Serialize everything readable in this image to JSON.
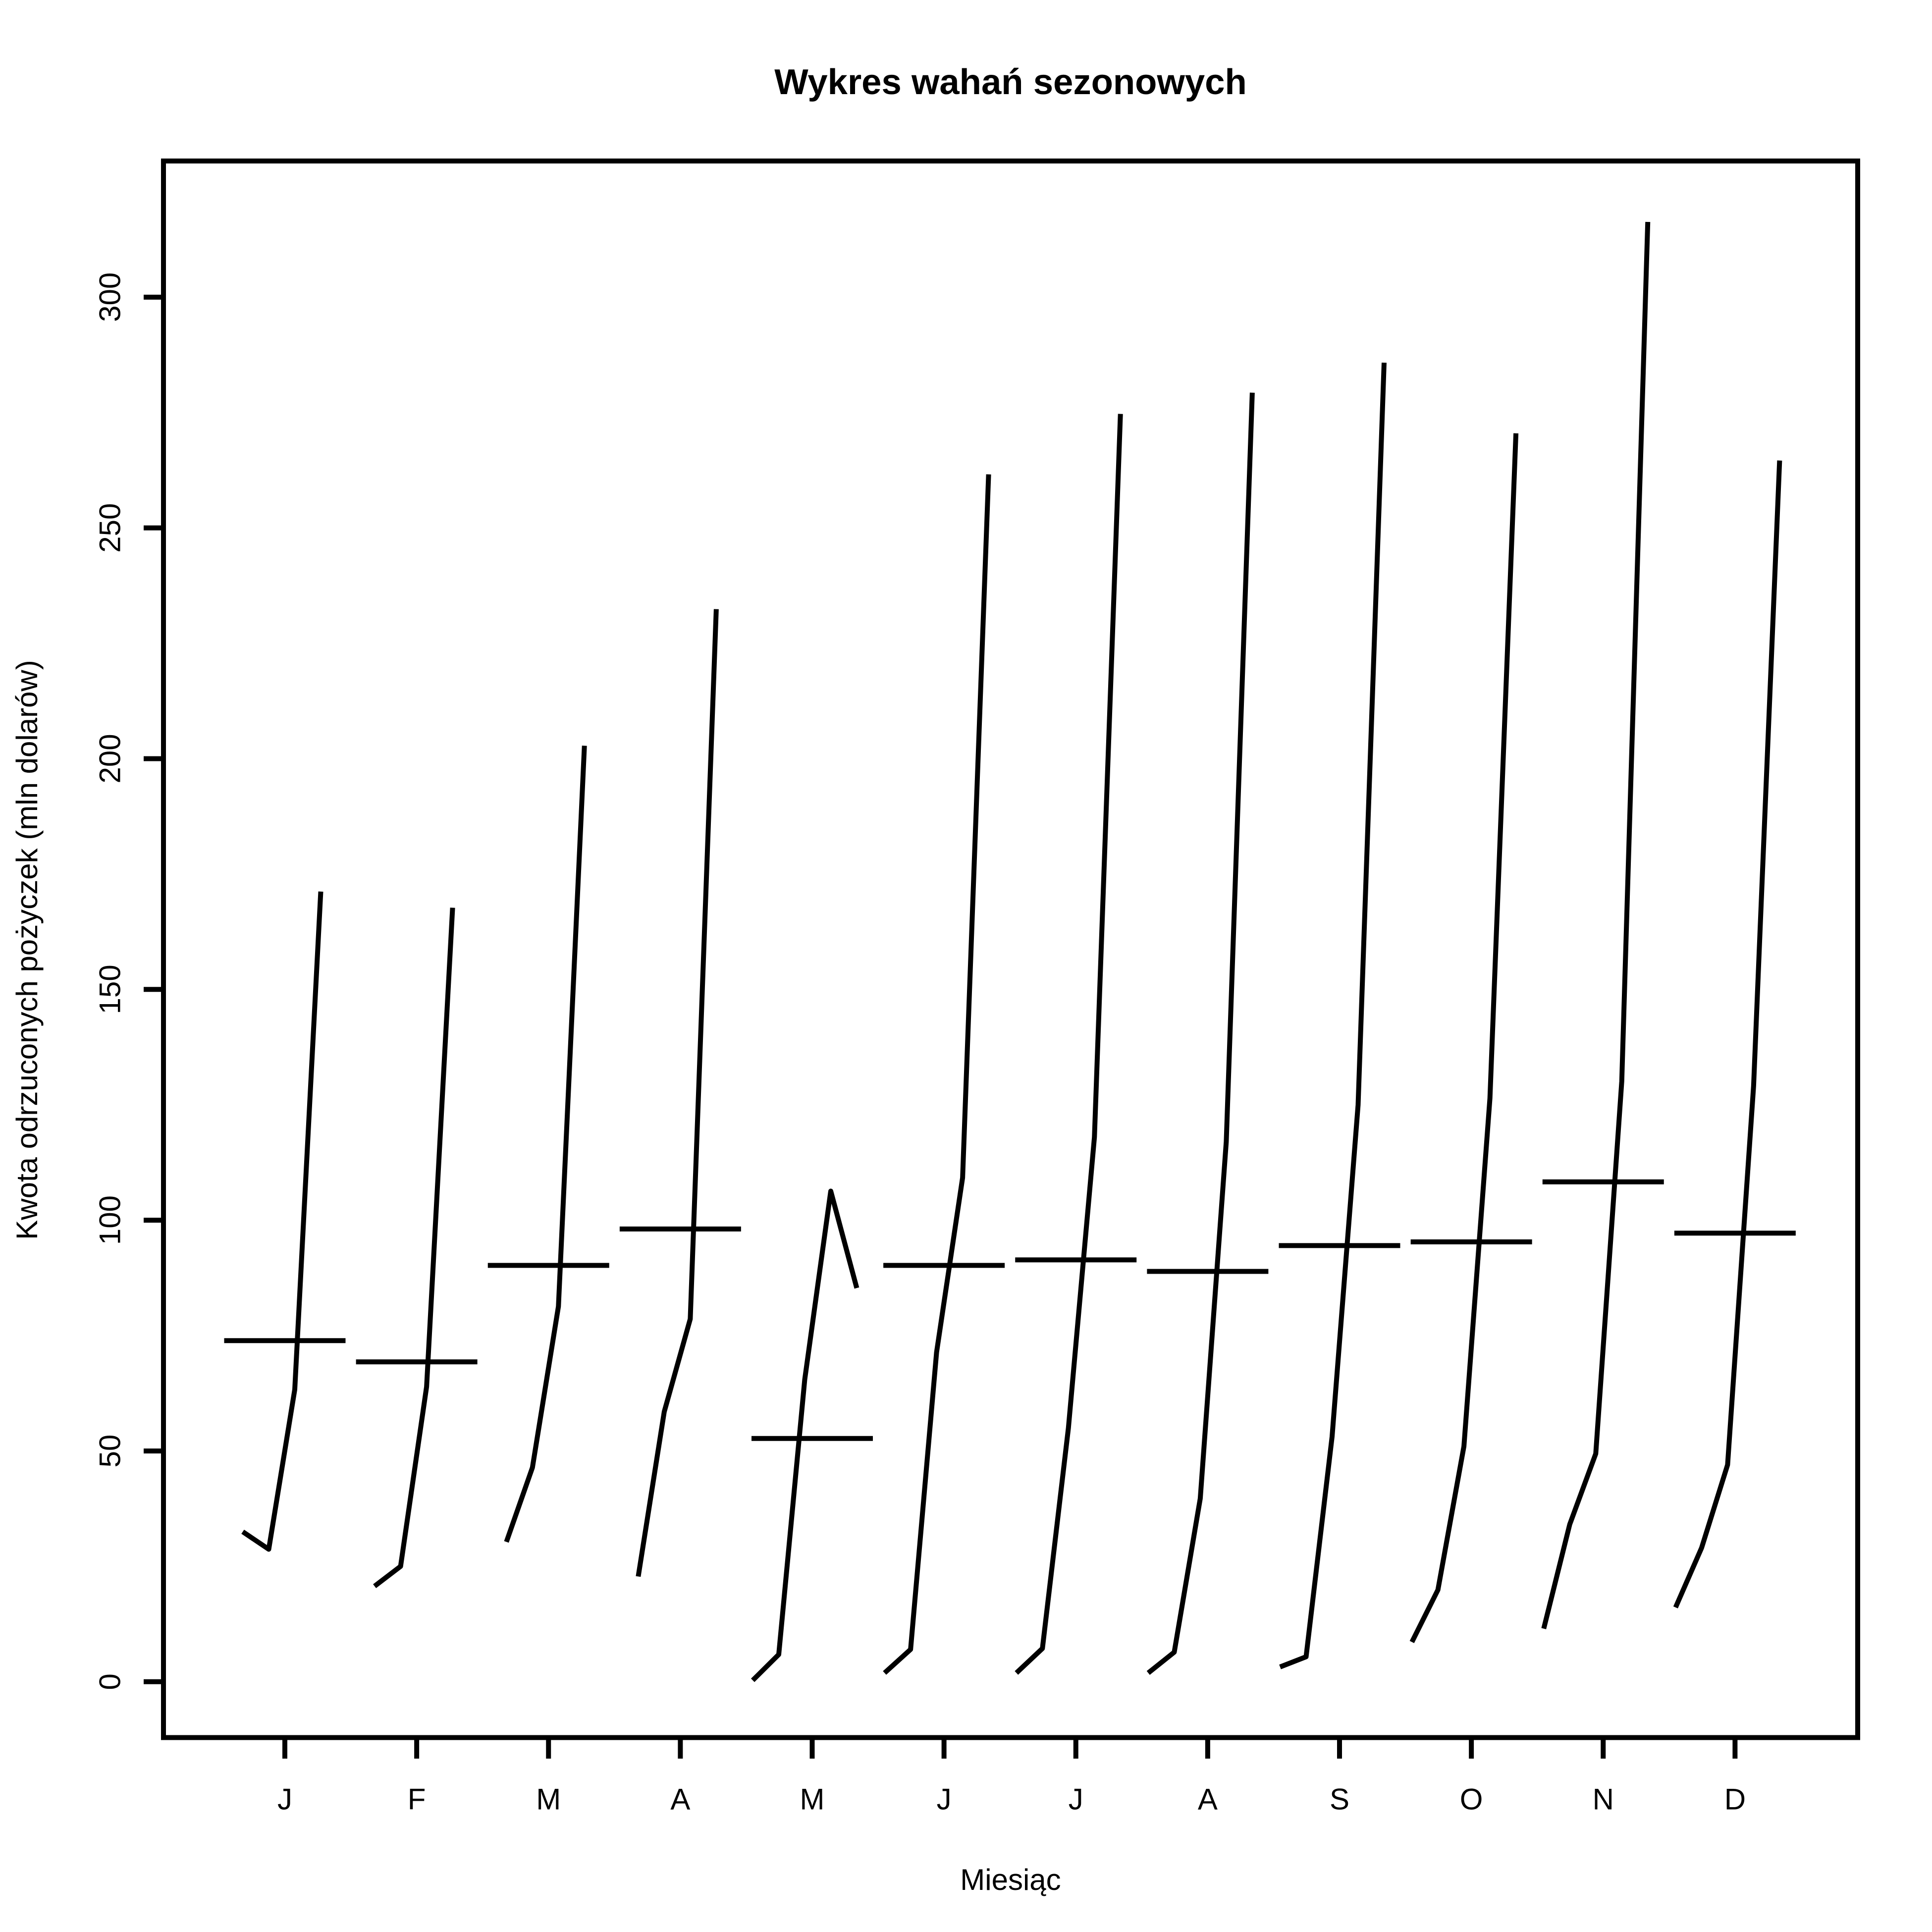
{
  "chart_data": {
    "type": "monthplot",
    "title": "Wykres wahań sezonowych",
    "x_label": "Miesiąc",
    "y_label": "Kwota odrzuconych pożyczek (mln dolarów)",
    "categories": [
      "J",
      "F",
      "M",
      "A",
      "M",
      "J",
      "J",
      "A",
      "S",
      "O",
      "N",
      "D"
    ],
    "subseries": [
      [
        32.5,
        28.7,
        63.3,
        171.2
      ],
      [
        20.7,
        25.0,
        63.9,
        167.7
      ],
      [
        30.3,
        46.4,
        81.3,
        202.8
      ],
      [
        22.8,
        58.5,
        78.6,
        232.4
      ],
      [
        0.3,
        5.9,
        65.5,
        106.3,
        85.3
      ],
      [
        1.9,
        7.0,
        71.4,
        109.2,
        261.6
      ],
      [
        1.9,
        7.2,
        55.0,
        118.0,
        274.7
      ],
      [
        1.9,
        6.4,
        39.7,
        117.0,
        279.3
      ],
      [
        3.2,
        5.4,
        53.1,
        125.0,
        285.8
      ],
      [
        8.6,
        19.9,
        51.0,
        126.4,
        270.5
      ],
      [
        11.5,
        34.1,
        49.4,
        130.1,
        316.3
      ],
      [
        16.1,
        29.0,
        47.0,
        129.1,
        264.6
      ]
    ],
    "means": [
      73.9,
      69.3,
      90.2,
      98.1,
      52.7,
      90.2,
      91.4,
      88.9,
      94.5,
      95.3,
      108.3,
      97.2
    ],
    "color": "#000000",
    "ylim": [
      -12.1,
      329.5
    ],
    "yticks": [
      0,
      50,
      100,
      150,
      200,
      250,
      300
    ]
  }
}
